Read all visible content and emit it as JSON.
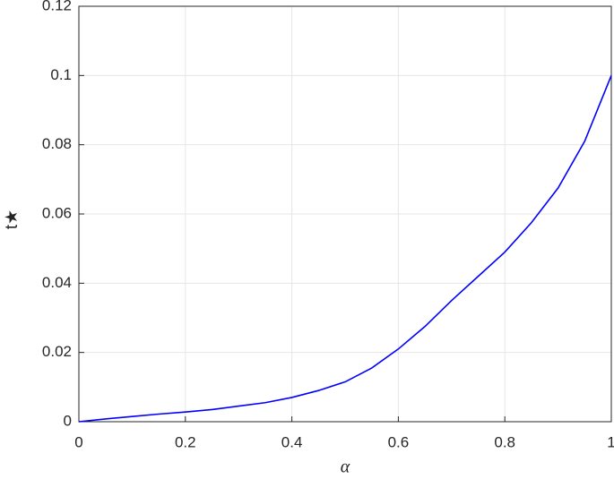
{
  "chart_data": {
    "type": "line",
    "x_label": "α",
    "y_label": "t★",
    "x": [
      0,
      0.05,
      0.1,
      0.15,
      0.2,
      0.25,
      0.3,
      0.35,
      0.4,
      0.45,
      0.5,
      0.55,
      0.6,
      0.65,
      0.7,
      0.75,
      0.8,
      0.85,
      0.9,
      0.95,
      1
    ],
    "series": [
      {
        "color": "#0000ff",
        "values": [
          0,
          0.0008,
          0.0015,
          0.0022,
          0.0028,
          0.0035,
          0.0045,
          0.0055,
          0.007,
          0.009,
          0.0115,
          0.0155,
          0.021,
          0.0275,
          0.035,
          0.042,
          0.049,
          0.0575,
          0.0675,
          0.081,
          0.1
        ]
      }
    ],
    "xlim": [
      0,
      1
    ],
    "ylim": [
      0,
      0.12
    ],
    "xticks": [
      0,
      0.2,
      0.4,
      0.6,
      0.8,
      1
    ],
    "yticks": [
      0,
      0.02,
      0.04,
      0.06,
      0.08,
      0.1,
      0.12
    ],
    "grid": true
  }
}
